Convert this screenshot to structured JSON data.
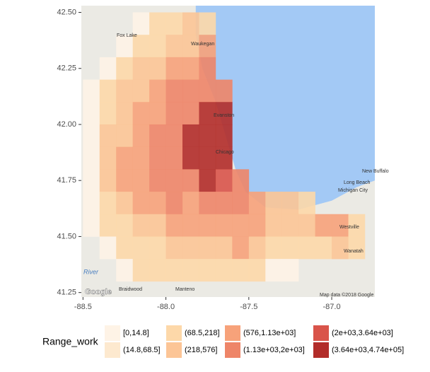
{
  "chart_data": {
    "type": "map",
    "xlim": [
      -88.51,
      -86.74
    ],
    "ylim": [
      41.23,
      42.53
    ],
    "xticks": [
      -88.5,
      {
        "value": -88,
        "label": "-88.0"
      },
      -87.5,
      {
        "value": -87,
        "label": "-87.0"
      }
    ],
    "yticks": [
      {
        "value": 42.5,
        "label": "42.50"
      },
      42.25,
      {
        "value": 42,
        "label": "42.00"
      },
      41.75,
      {
        "value": 41.5,
        "label": "41.50"
      },
      41.25
    ],
    "cell_lon": [
      -88.5,
      -86.8
    ],
    "cell_lat": [
      42.5,
      41.3
    ],
    "cells": [
      [
        null,
        null,
        null,
        0,
        2,
        2,
        3,
        2,
        null,
        null,
        null,
        null,
        null,
        null,
        null,
        null,
        null
      ],
      [
        null,
        null,
        0,
        2,
        2,
        3,
        3,
        4,
        null,
        null,
        null,
        null,
        null,
        null,
        null,
        null,
        null
      ],
      [
        null,
        0,
        2,
        3,
        3,
        4,
        4,
        5,
        null,
        null,
        null,
        null,
        null,
        null,
        null,
        null,
        null
      ],
      [
        0,
        2,
        3,
        3,
        4,
        5,
        5,
        5,
        5,
        null,
        null,
        null,
        null,
        null,
        null,
        null,
        null
      ],
      [
        0,
        2,
        3,
        4,
        4,
        5,
        5,
        7,
        7,
        null,
        null,
        null,
        null,
        null,
        null,
        null,
        null
      ],
      [
        0,
        3,
        3,
        4,
        5,
        5,
        7,
        7,
        7,
        null,
        null,
        null,
        null,
        null,
        null,
        null,
        null
      ],
      [
        0,
        3,
        4,
        4,
        5,
        5,
        7,
        7,
        7,
        null,
        null,
        null,
        null,
        null,
        null,
        null,
        null
      ],
      [
        0,
        3,
        4,
        4,
        5,
        5,
        5,
        7,
        6,
        5,
        null,
        null,
        null,
        null,
        null,
        null,
        null
      ],
      [
        0,
        2,
        3,
        4,
        4,
        5,
        4,
        5,
        5,
        5,
        4,
        3,
        3,
        2,
        null,
        null,
        null
      ],
      [
        0,
        2,
        2,
        3,
        3,
        4,
        4,
        4,
        4,
        4,
        4,
        3,
        3,
        3,
        4,
        4,
        2
      ],
      [
        null,
        0,
        2,
        2,
        2,
        3,
        3,
        3,
        3,
        4,
        3,
        2,
        2,
        2,
        2,
        3,
        2
      ],
      [
        null,
        null,
        0,
        2,
        2,
        2,
        2,
        2,
        2,
        2,
        2,
        0,
        0,
        null,
        null,
        null,
        null
      ]
    ],
    "legend_title": "Range_work",
    "legend": [
      {
        "label": "[0,14.8]",
        "color": "#fef3e6"
      },
      {
        "label": "(14.8,68.5]",
        "color": "#fde9cf"
      },
      {
        "label": "(68.5,218]",
        "color": "#fdd8a9"
      },
      {
        "label": "(218,576]",
        "color": "#fcc596"
      },
      {
        "label": "(576,1.13e+03]",
        "color": "#f7a27a"
      },
      {
        "label": "(1.13e+03,2e+03]",
        "color": "#ee8568"
      },
      {
        "label": "(2e+03,3.64e+03]",
        "color": "#d9544a"
      },
      {
        "label": "(3.64e+03,4.74e+05]",
        "color": "#b22c29"
      }
    ],
    "map_labels": [
      "Fox Lake",
      "Waukegan",
      "Evanston",
      "Chicago",
      "New Buffalo",
      "Long Beach",
      "Michigan City",
      "Westville",
      "Wanatah",
      "Braidwood",
      "Manteno",
      "River",
      "Google",
      "Map data ©2018 Google"
    ]
  }
}
